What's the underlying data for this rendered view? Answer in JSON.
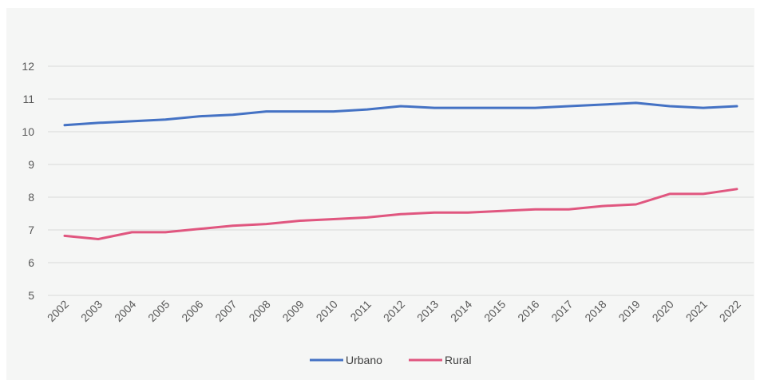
{
  "chart_data": {
    "type": "line",
    "title": "",
    "xlabel": "",
    "ylabel": "",
    "x": [
      "2002",
      "2003",
      "2004",
      "2005",
      "2006",
      "2007",
      "2008",
      "2009",
      "2010",
      "2011",
      "2012",
      "2013",
      "2014",
      "2015",
      "2016",
      "2017",
      "2018",
      "2019",
      "2020",
      "2021",
      "2022"
    ],
    "ylim": [
      5,
      12
    ],
    "yticks": [
      5,
      6,
      7,
      8,
      9,
      10,
      11,
      12
    ],
    "grid": true,
    "legend_position": "bottom",
    "series": [
      {
        "name": "Urbano",
        "color": "#4472c4",
        "values": [
          10.2,
          10.27,
          10.32,
          10.37,
          10.47,
          10.52,
          10.62,
          10.62,
          10.62,
          10.68,
          10.78,
          10.73,
          10.73,
          10.73,
          10.73,
          10.78,
          10.83,
          10.88,
          10.78,
          10.73,
          10.78
        ]
      },
      {
        "name": "Rural",
        "color": "#e0567f",
        "values": [
          6.82,
          6.72,
          6.93,
          6.93,
          7.03,
          7.13,
          7.18,
          7.28,
          7.33,
          7.38,
          7.48,
          7.53,
          7.53,
          7.58,
          7.63,
          7.63,
          7.73,
          7.78,
          8.1,
          8.1,
          8.25
        ]
      }
    ]
  }
}
